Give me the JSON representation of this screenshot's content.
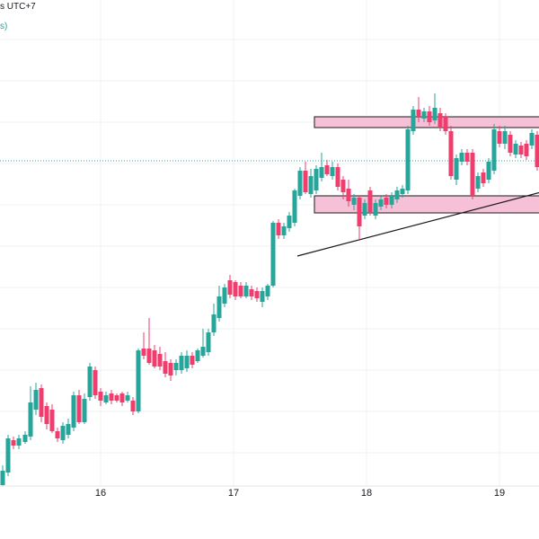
{
  "header": {
    "timezone_text": "s UTC+7",
    "indicator_text": "s)"
  },
  "colors": {
    "bull": "#26a69a",
    "bear": "#ef3d6e",
    "zone_fill": "#f6c1d6",
    "zone_stroke": "#1a1a1a",
    "trendline": "#1a1a1a",
    "price_line": "#26a69a",
    "grid": "#eef0f3",
    "background": "#ffffff"
  },
  "chart_data": {
    "type": "candlestick",
    "x_tick_labels": [
      "16",
      "17",
      "18",
      "19"
    ]
  }
}
